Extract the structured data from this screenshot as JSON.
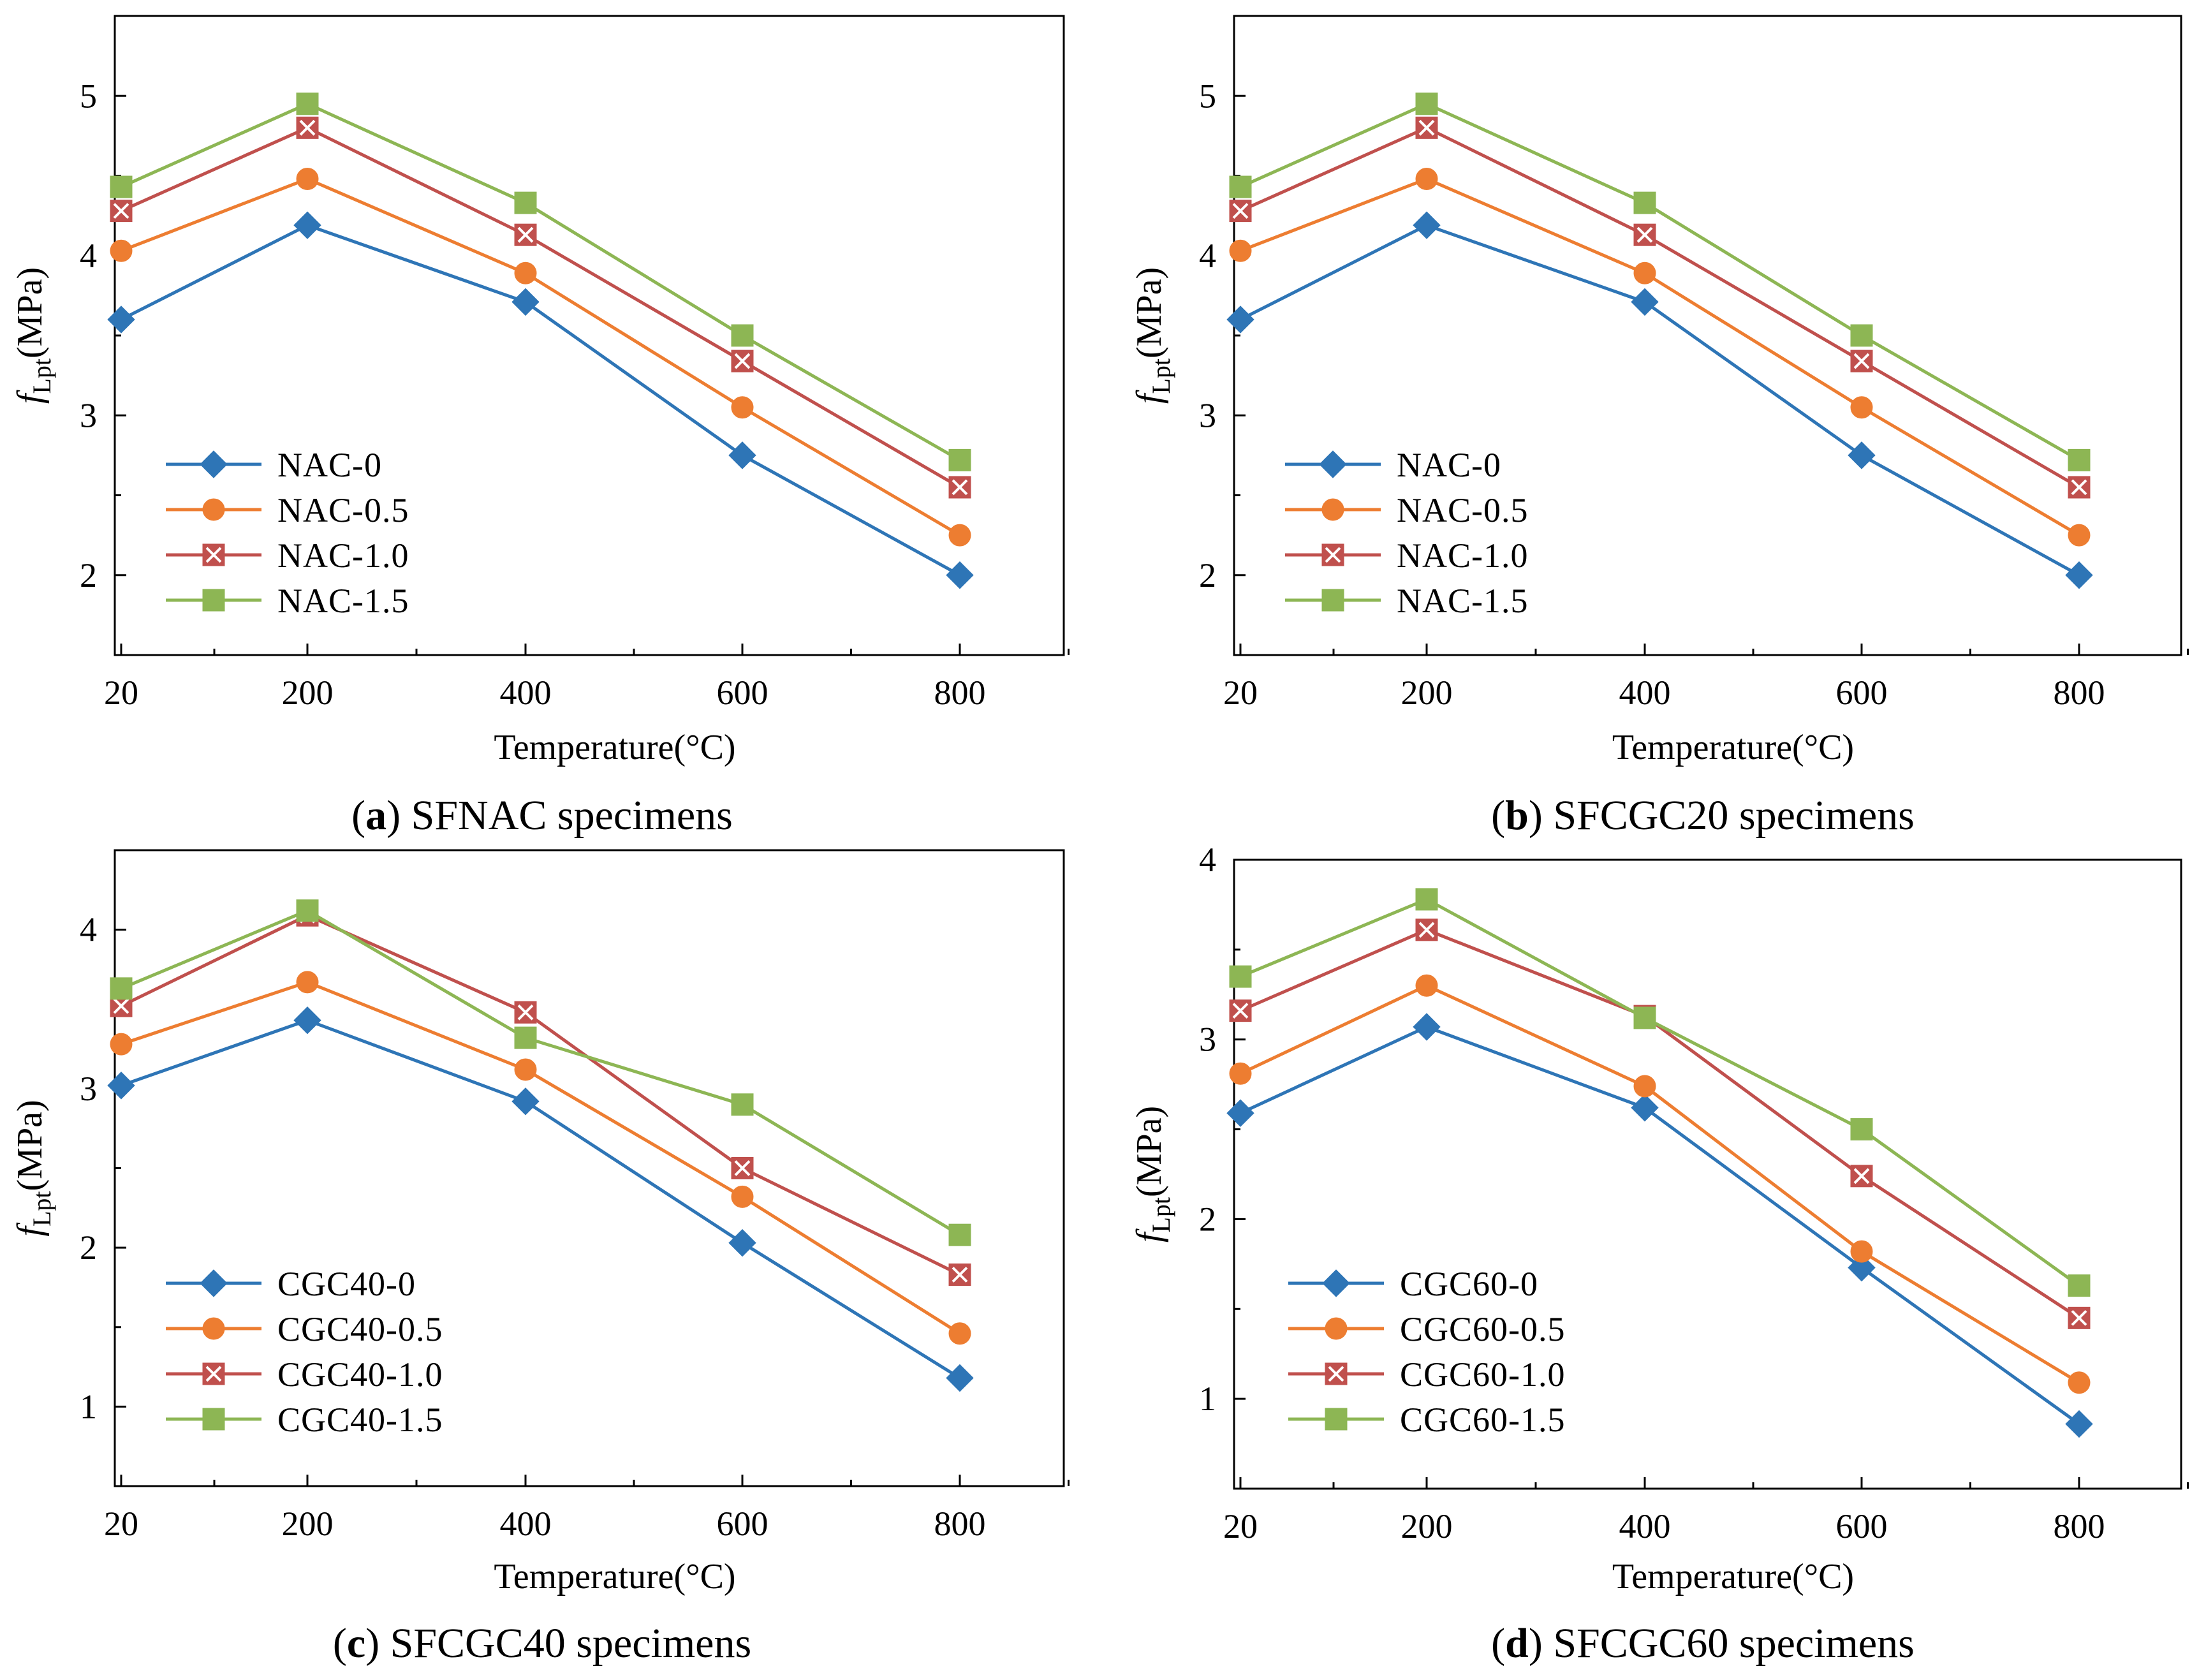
{
  "colors": {
    "series": [
      "#2e75b6",
      "#ed7d31",
      "#c0504d",
      "#8db654"
    ],
    "axis": "#000000"
  },
  "chart_data": [
    {
      "id": "a",
      "type": "line",
      "caption_letter": "a",
      "caption_text": "SFNAC specimens",
      "xlabel": "Temperature(°C)",
      "ylabel_main": "f",
      "ylabel_sub": "Lpt",
      "ylabel_unit": "(MPa)",
      "x": [
        20,
        200,
        400,
        600,
        800
      ],
      "x_tick_labels": [
        "20",
        "200",
        "400",
        "600",
        "800"
      ],
      "ylim": [
        1.5,
        5.5
      ],
      "y_ticks": [
        2,
        3,
        4,
        5
      ],
      "y_tick_labels": [
        "2",
        "3",
        "4",
        "5"
      ],
      "legend_position": "bottom-left",
      "series": [
        {
          "name": "NAC-0",
          "marker": "diamond",
          "values": [
            3.6,
            4.19,
            3.71,
            2.75,
            2.0
          ]
        },
        {
          "name": "NAC-0.5",
          "marker": "circle",
          "values": [
            4.03,
            4.48,
            3.89,
            3.05,
            2.25
          ]
        },
        {
          "name": "NAC-1.0",
          "marker": "square-x",
          "values": [
            4.28,
            4.8,
            4.13,
            3.34,
            2.55
          ]
        },
        {
          "name": "NAC-1.5",
          "marker": "square",
          "values": [
            4.43,
            4.95,
            4.33,
            3.5,
            2.72
          ]
        }
      ]
    },
    {
      "id": "b",
      "type": "line",
      "caption_letter": "b",
      "caption_text": "SFCGC20 specimens",
      "xlabel": "Temperature(°C)",
      "ylabel_main": "f",
      "ylabel_sub": "Lpt",
      "ylabel_unit": "(MPa)",
      "x": [
        20,
        200,
        400,
        600,
        800
      ],
      "x_tick_labels": [
        "20",
        "200",
        "400",
        "600",
        "800"
      ],
      "ylim": [
        1.5,
        5.5
      ],
      "y_ticks": [
        2,
        3,
        4,
        5
      ],
      "y_tick_labels": [
        "2",
        "3",
        "4",
        "5"
      ],
      "legend_position": "bottom-left",
      "series": [
        {
          "name": "NAC-0",
          "marker": "diamond",
          "values": [
            3.6,
            4.19,
            3.71,
            2.75,
            2.0
          ]
        },
        {
          "name": "NAC-0.5",
          "marker": "circle",
          "values": [
            4.03,
            4.48,
            3.89,
            3.05,
            2.25
          ]
        },
        {
          "name": "NAC-1.0",
          "marker": "square-x",
          "values": [
            4.28,
            4.8,
            4.13,
            3.34,
            2.55
          ]
        },
        {
          "name": "NAC-1.5",
          "marker": "square",
          "values": [
            4.43,
            4.95,
            4.33,
            3.5,
            2.72
          ]
        }
      ]
    },
    {
      "id": "c",
      "type": "line",
      "caption_letter": "c",
      "caption_text": "SFCGC40 specimens",
      "xlabel": "Temperature(°C)",
      "ylabel_main": "f",
      "ylabel_sub": "Lpt",
      "ylabel_unit": "(MPa)",
      "x": [
        20,
        200,
        400,
        600,
        800
      ],
      "x_tick_labels": [
        "20",
        "200",
        "400",
        "600",
        "800"
      ],
      "ylim": [
        0.5,
        4.5
      ],
      "y_ticks": [
        1,
        2,
        3,
        4
      ],
      "y_tick_labels": [
        "1",
        "2",
        "3",
        "4"
      ],
      "legend_position": "bottom-left",
      "series": [
        {
          "name": "CGC40-0",
          "marker": "diamond",
          "values": [
            3.02,
            3.43,
            2.92,
            2.03,
            1.18
          ]
        },
        {
          "name": "CGC40-0.5",
          "marker": "circle",
          "values": [
            3.28,
            3.67,
            3.12,
            2.32,
            1.46
          ]
        },
        {
          "name": "CGC40-1.0",
          "marker": "square-x",
          "values": [
            3.52,
            4.09,
            3.48,
            2.5,
            1.83
          ]
        },
        {
          "name": "CGC40-1.5",
          "marker": "square",
          "values": [
            3.63,
            4.12,
            3.32,
            2.9,
            2.08
          ]
        }
      ]
    },
    {
      "id": "d",
      "type": "line",
      "caption_letter": "d",
      "caption_text": "SFCGC60 specimens",
      "xlabel": "Temperature(°C)",
      "ylabel_main": "f",
      "ylabel_sub": "Lpt",
      "ylabel_unit": "(MPa)",
      "x": [
        20,
        200,
        400,
        600,
        800
      ],
      "x_tick_labels": [
        "20",
        "200",
        "400",
        "600",
        "800"
      ],
      "ylim": [
        0.5,
        4.0
      ],
      "y_ticks": [
        1,
        2,
        3,
        4
      ],
      "y_tick_labels": [
        "1",
        "2",
        "3",
        "4"
      ],
      "legend_position": "bottom-left",
      "series": [
        {
          "name": "CGC60-0",
          "marker": "diamond",
          "values": [
            2.59,
            3.07,
            2.62,
            1.73,
            0.86
          ]
        },
        {
          "name": "CGC60-0.5",
          "marker": "circle",
          "values": [
            2.81,
            3.3,
            2.74,
            1.82,
            1.09
          ]
        },
        {
          "name": "CGC60-1.0",
          "marker": "square-x",
          "values": [
            3.16,
            3.61,
            3.13,
            2.24,
            1.45
          ]
        },
        {
          "name": "CGC60-1.5",
          "marker": "square",
          "values": [
            3.35,
            3.78,
            3.12,
            2.5,
            1.63
          ]
        }
      ]
    }
  ]
}
